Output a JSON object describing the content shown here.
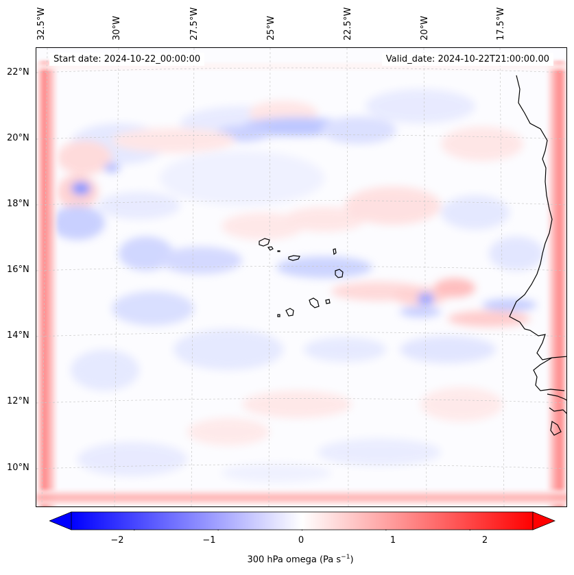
{
  "start_date": "Start date: 2024-10-22_00:00:00",
  "valid_date": "Valid_date: 2024-10-22T21:00:00.00",
  "lon_labels": [
    "32.5°W",
    "30°W",
    "27.5°W",
    "25°W",
    "22.5°W",
    "20°W",
    "17.5°W"
  ],
  "lat_labels": [
    "22°N",
    "20°N",
    "18°N",
    "16°N",
    "14°N",
    "12°N",
    "10°N"
  ],
  "colorbar": {
    "ticks": [
      "−2",
      "−1",
      "0",
      "1",
      "2"
    ],
    "tick_values": [
      -2,
      -1,
      0,
      1,
      2
    ],
    "range": [
      -2.75,
      2.75
    ],
    "label": "300 hPa omega (Pa s",
    "label_sup": "−1",
    "label_end": ")",
    "low_color": "#0000ff",
    "mid_color": "#ffffff",
    "high_color": "#ff0000"
  },
  "map": {
    "field": "300 hPa omega",
    "coastline_color": "#000000",
    "gridline_color": "#c8c8c8"
  }
}
